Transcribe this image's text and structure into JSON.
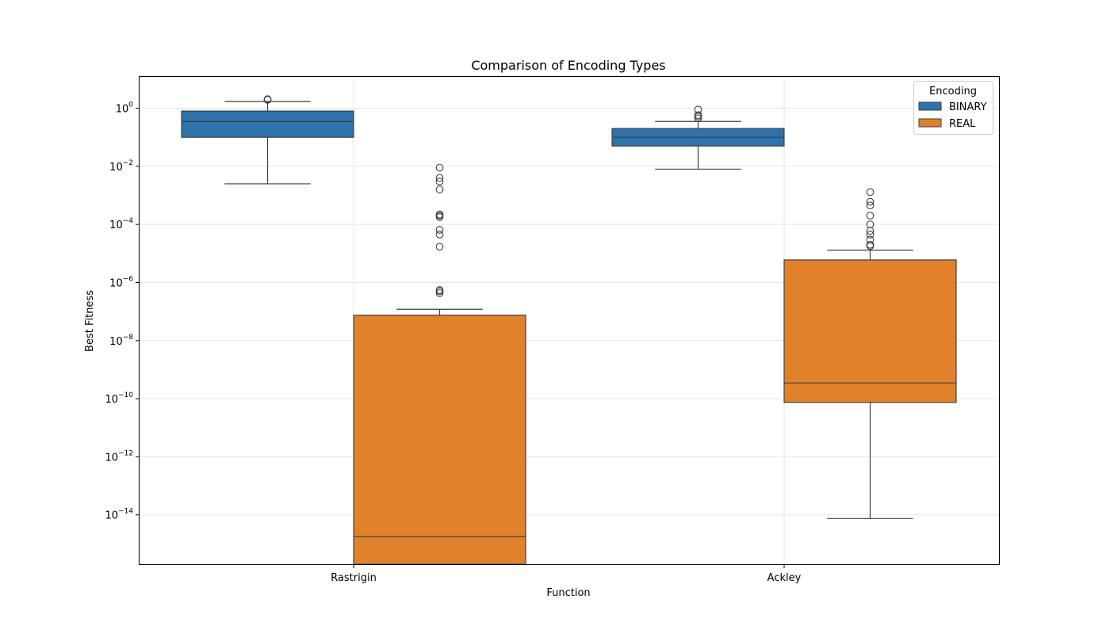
{
  "chart_data": {
    "type": "box",
    "title": "Comparison of Encoding Types",
    "xlabel": "Function",
    "ylabel": "Best Fitness",
    "yscale": "log",
    "ylim": [
      2e-16,
      12
    ],
    "yticks": [
      {
        "value": 1,
        "base": "10",
        "exp": "0"
      },
      {
        "value": 0.01,
        "base": "10",
        "exp": "−2"
      },
      {
        "value": 0.0001,
        "base": "10",
        "exp": "−4"
      },
      {
        "value": 1e-06,
        "base": "10",
        "exp": "−6"
      },
      {
        "value": 1e-08,
        "base": "10",
        "exp": "−8"
      },
      {
        "value": 1e-10,
        "base": "10",
        "exp": "−10"
      },
      {
        "value": 1e-12,
        "base": "10",
        "exp": "−12"
      },
      {
        "value": 1e-14,
        "base": "10",
        "exp": "−14"
      }
    ],
    "grid": true,
    "categories": [
      "Rastrigin",
      "Ackley"
    ],
    "legend": {
      "title": "Encoding",
      "placement": "top-right"
    },
    "series": [
      {
        "name": "BINARY",
        "color": "#2e73ac",
        "boxes": [
          {
            "whisker_low": 0.0025,
            "q1": 0.1,
            "median": 0.35,
            "q3": 0.8,
            "whisker_high": 1.7,
            "outliers": [
              2.05,
              1.95
            ]
          },
          {
            "whisker_low": 0.008,
            "q1": 0.05,
            "median": 0.1,
            "q3": 0.2,
            "whisker_high": 0.35,
            "outliers": [
              0.9,
              0.58,
              0.52,
              0.45
            ]
          }
        ]
      },
      {
        "name": "REAL",
        "color": "#e1812c",
        "boxes": [
          {
            "whisker_low": 2e-16,
            "q1": 2e-16,
            "median": 1.8e-15,
            "q3": 7.5e-08,
            "whisker_high": 1.2e-07,
            "outliers": [
              0.009,
              0.004,
              0.003,
              0.0016,
              0.00022,
              0.0002,
              0.00018,
              6.5e-05,
              4.5e-05,
              1.7e-05,
              5.5e-07,
              5e-07,
              4.3e-07
            ]
          },
          {
            "whisker_low": 7.5e-15,
            "q1": 7.5e-11,
            "median": 3.5e-10,
            "q3": 6e-06,
            "whisker_high": 1.3e-05,
            "outliers": [
              0.0013,
              0.0006,
              0.00045,
              0.0002,
              0.0001,
              6e-05,
              4.5e-05,
              3e-05,
              2e-05,
              1.8e-05
            ]
          }
        ]
      }
    ]
  }
}
